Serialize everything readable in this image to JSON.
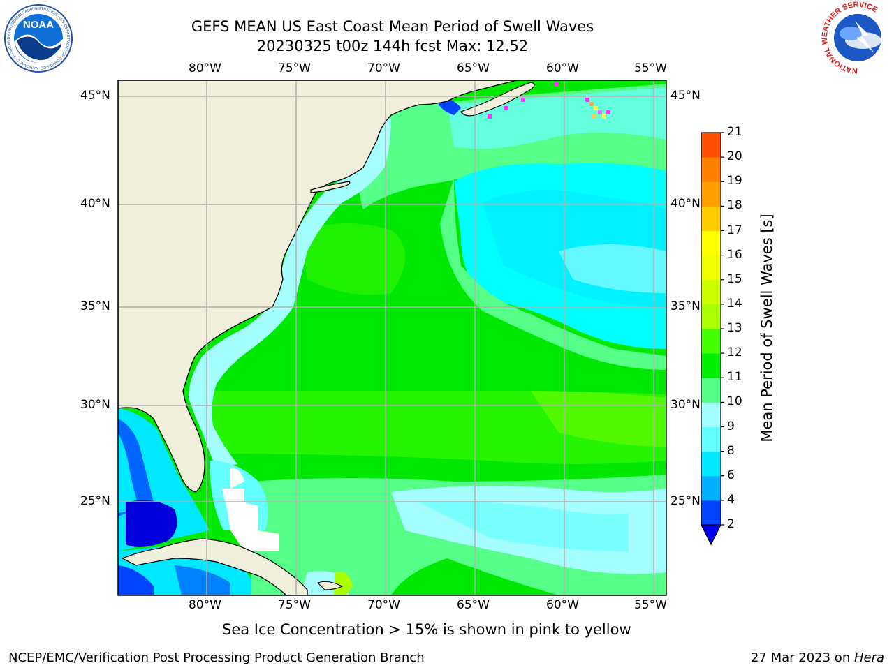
{
  "title": {
    "line1": "GEFS MEAN US East Coast Mean Period of Swell Waves",
    "line2": "20230325 t00z 144h fcst   Max: 12.52"
  },
  "map": {
    "lon_labels": [
      "80°W",
      "75°W",
      "70°W",
      "65°W",
      "60°W",
      "55°W"
    ],
    "lat_labels": [
      "45°N",
      "40°N",
      "35°N",
      "30°N",
      "25°N"
    ]
  },
  "colorbar": {
    "label": "Mean Period of Swell Waves [s]",
    "ticks": [
      "2",
      "4",
      "6",
      "8",
      "9",
      "10",
      "11",
      "12",
      "13",
      "14",
      "15",
      "16",
      "17",
      "18",
      "19",
      "20",
      "21"
    ],
    "colors": [
      "#0044ff",
      "#00b0ff",
      "#00e8ff",
      "#66ffff",
      "#a6ffff",
      "#55ff88",
      "#00ee00",
      "#44ff00",
      "#aaff00",
      "#ccff00",
      "#eeff00",
      "#ffff00",
      "#ffcc00",
      "#ffa000",
      "#ff8000",
      "#ff5000",
      "#ff2000",
      "#ff0000"
    ],
    "under_color": "#0000ee"
  },
  "footer": {
    "note": "Sea Ice Concentration > 15% is shown in pink to yellow",
    "credit": "NCEP/EMC/Verification Post Processing Product Generation Branch",
    "date": "27 Mar 2023 on ",
    "host": "Hera"
  },
  "logos": {
    "left": "NOAA",
    "left_ring": "NATIONAL OCEANIC AND ATMOSPHERIC ADMINISTRATION · U.S. DEPARTMENT OF COMMERCE",
    "right_ring": "NATIONAL WEATHER SERVICE"
  }
}
